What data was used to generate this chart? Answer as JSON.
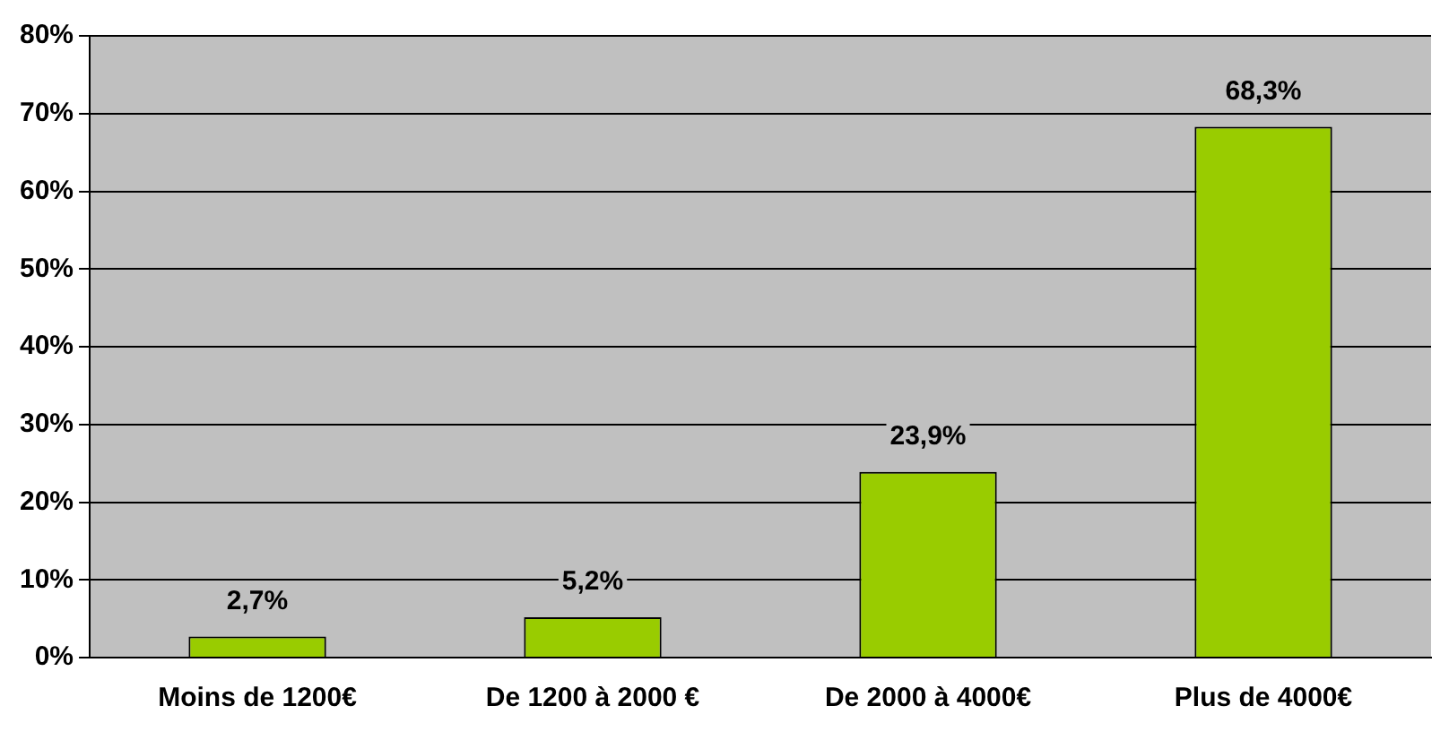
{
  "chart_data": {
    "type": "bar",
    "categories": [
      "Moins de 1200€",
      "De 1200 à 2000 €",
      "De 2000 à 4000€",
      "Plus de 4000€"
    ],
    "values": [
      2.7,
      5.2,
      23.9,
      68.3
    ],
    "color": "#99cc00",
    "value_labels": [
      "2,7%",
      "5,2%",
      "23,9%",
      "68,3%"
    ],
    "ylim": [
      0,
      80
    ],
    "yticks": [
      {
        "value": 0,
        "label": "0%"
      },
      {
        "value": 10,
        "label": "10%"
      },
      {
        "value": 20,
        "label": "20%"
      },
      {
        "value": 30,
        "label": "30%"
      },
      {
        "value": 40,
        "label": "40%"
      },
      {
        "value": 50,
        "label": "50%"
      },
      {
        "value": 60,
        "label": "60%"
      },
      {
        "value": 70,
        "label": "70%"
      },
      {
        "value": 80,
        "label": "80%"
      }
    ],
    "grid": "y",
    "legend": false
  }
}
